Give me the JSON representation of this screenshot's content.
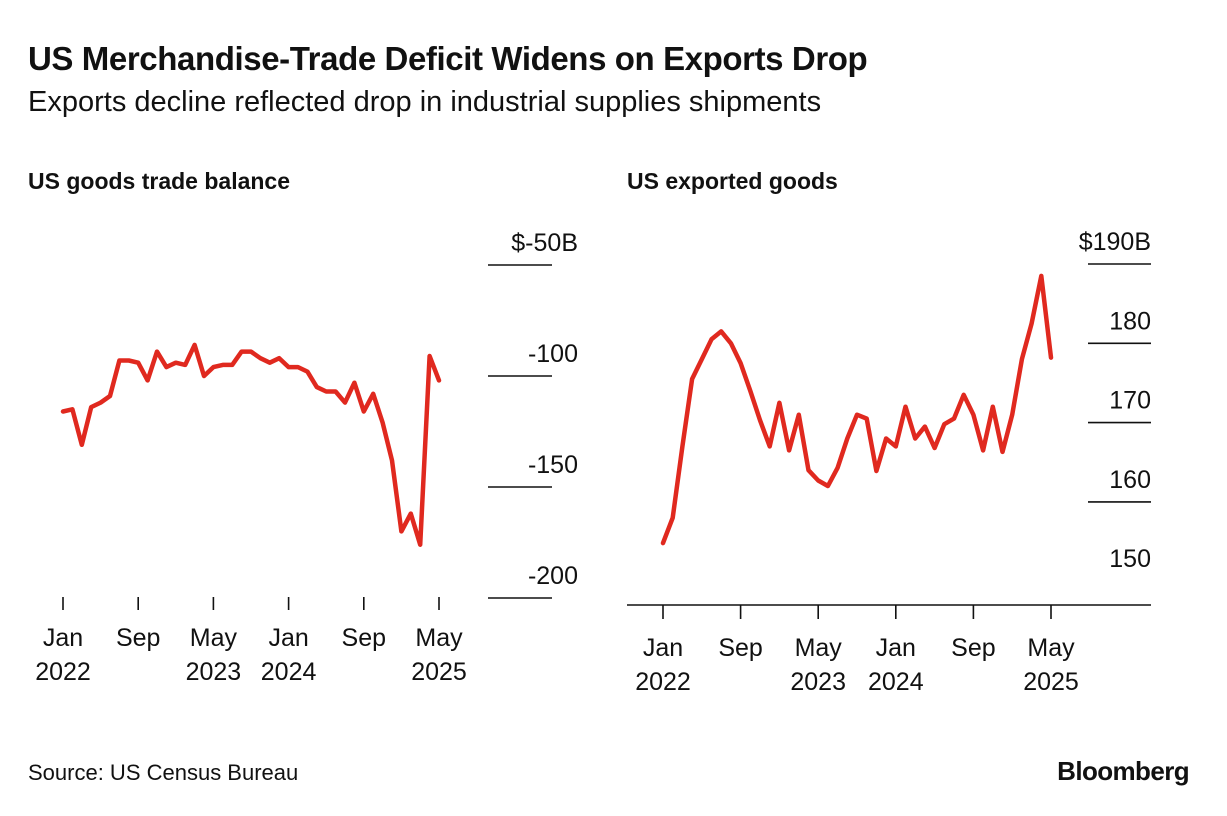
{
  "header": {
    "title": "US Merchandise-Trade Deficit Widens on Exports Drop",
    "subtitle": "Exports decline reflected drop in industrial supplies shipments"
  },
  "footer": {
    "source": "Source: US Census Bureau",
    "brand": "Bloomberg"
  },
  "colors": {
    "line": "#e0291f",
    "axis": "#111111",
    "text": "#111111"
  },
  "chart_data": [
    {
      "type": "line",
      "title": "US goods trade balance",
      "xlabel": "",
      "ylabel": "",
      "ylim": [
        -50,
        -200
      ],
      "y_ticks": [
        -50,
        -100,
        -150,
        -200
      ],
      "y_tick_labels": [
        "$-50B",
        "-100",
        "-150",
        "-200"
      ],
      "x_tick_positions": [
        0,
        8,
        16,
        24,
        32,
        40
      ],
      "x_tick_labels": [
        [
          "Jan",
          "2022"
        ],
        [
          "Sep",
          ""
        ],
        [
          "May",
          "2023"
        ],
        [
          "Jan",
          "2024"
        ],
        [
          "Sep",
          ""
        ],
        [
          "May",
          "2025"
        ]
      ],
      "grid": true,
      "series": [
        {
          "name": "US goods trade balance",
          "x": [
            0,
            1,
            2,
            3,
            4,
            5,
            6,
            7,
            8,
            9,
            10,
            11,
            12,
            13,
            14,
            15,
            16,
            17,
            18,
            19,
            20,
            21,
            22,
            23,
            24,
            25,
            26,
            27,
            28,
            29,
            30,
            31,
            32,
            33,
            34,
            35,
            36,
            37,
            38,
            39,
            40
          ],
          "values": [
            -116,
            -115,
            -131,
            -114,
            -112,
            -109,
            -93,
            -93,
            -94,
            -102,
            -89,
            -96,
            -94,
            -95,
            -86,
            -100,
            -96,
            -95,
            -95,
            -89,
            -89,
            -92,
            -94,
            -92,
            -96,
            -96,
            -98,
            -105,
            -107,
            -107,
            -112,
            -103,
            -116,
            -108,
            -121,
            -138,
            -170,
            -162,
            -176,
            -91,
            -102
          ]
        }
      ]
    },
    {
      "type": "line",
      "title": "US exported goods",
      "xlabel": "",
      "ylabel": "",
      "ylim": [
        147,
        190
      ],
      "y_ticks": [
        190,
        180,
        170,
        160,
        150
      ],
      "y_tick_labels": [
        "$190B",
        "180",
        "170",
        "160",
        "150"
      ],
      "x_tick_positions": [
        0,
        8,
        16,
        24,
        32,
        40
      ],
      "x_tick_labels": [
        [
          "Jan",
          "2022"
        ],
        [
          "Sep",
          ""
        ],
        [
          "May",
          "2023"
        ],
        [
          "Jan",
          "2024"
        ],
        [
          "Sep",
          ""
        ],
        [
          "May",
          "2025"
        ]
      ],
      "grid": true,
      "series": [
        {
          "name": "US exported goods",
          "x": [
            0,
            1,
            2,
            3,
            4,
            5,
            6,
            7,
            8,
            9,
            10,
            11,
            12,
            13,
            14,
            15,
            16,
            17,
            18,
            19,
            20,
            21,
            22,
            23,
            24,
            25,
            26,
            27,
            28,
            29,
            30,
            31,
            32,
            33,
            34,
            35,
            36,
            37,
            38,
            39,
            40
          ],
          "values": [
            154.8,
            158,
            167,
            175.5,
            178,
            180.5,
            181.5,
            180,
            177.5,
            174,
            170.3,
            167,
            172.5,
            166.5,
            171,
            164,
            162.7,
            162,
            164.3,
            168,
            171,
            170.5,
            163.9,
            168,
            167,
            172,
            168,
            169.5,
            166.8,
            169.8,
            170.5,
            173.5,
            171,
            166.5,
            172,
            166.3,
            171,
            178,
            182.5,
            188.5,
            178.2
          ]
        }
      ]
    }
  ]
}
